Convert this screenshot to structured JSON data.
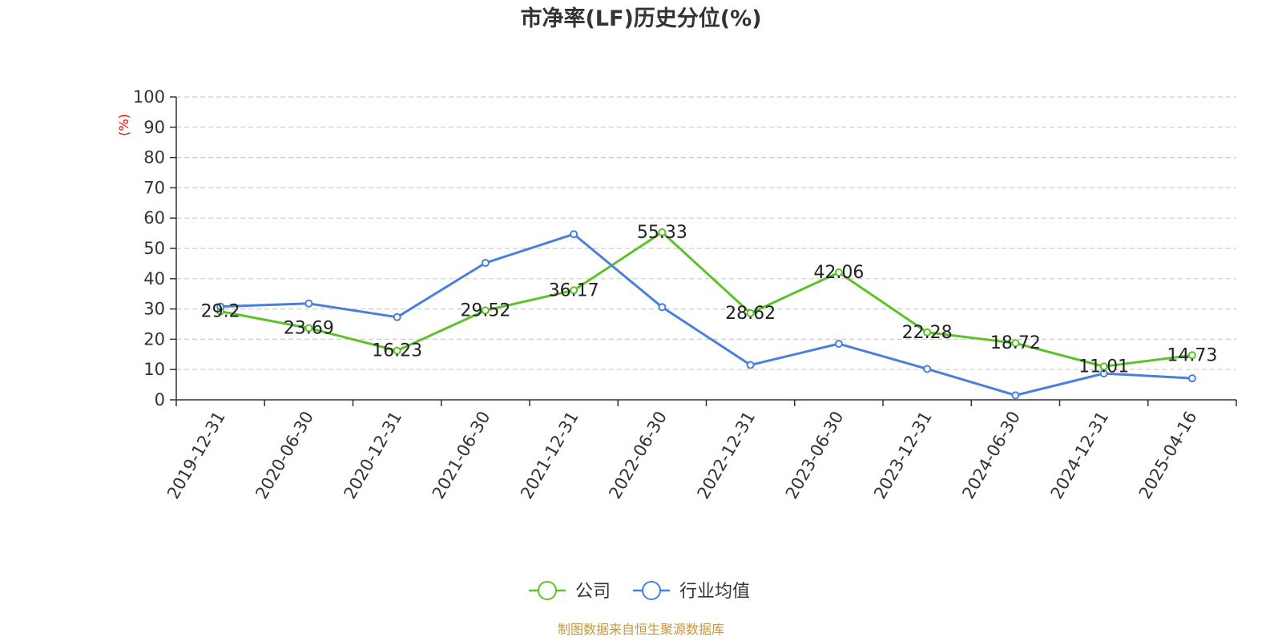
{
  "chart_data": {
    "type": "line",
    "title": "市净率(LF)历史分位(%)",
    "ylabel": "(%)",
    "ylim": [
      0,
      100
    ],
    "yticks": [
      0,
      10,
      20,
      30,
      40,
      50,
      60,
      70,
      80,
      90,
      100
    ],
    "categories": [
      "2019-12-31",
      "2020-06-30",
      "2020-12-31",
      "2021-06-30",
      "2021-12-31",
      "2022-06-30",
      "2022-12-31",
      "2023-06-30",
      "2023-12-31",
      "2024-06-30",
      "2024-12-31",
      "2025-04-16"
    ],
    "grid": true,
    "legend_position": "bottom",
    "series": [
      {
        "name": "公司",
        "color": "#5cc22a",
        "values": [
          29.2,
          23.69,
          16.23,
          29.52,
          36.17,
          55.33,
          28.62,
          42.06,
          22.28,
          18.72,
          11.01,
          14.73
        ],
        "labels": [
          "29.2",
          "23.69",
          "16.23",
          "29.52",
          "36.17",
          "55.33",
          "28.62",
          "42.06",
          "22.28",
          "18.72",
          "11.01",
          "14.73"
        ]
      },
      {
        "name": "行业均值",
        "color": "#4a7fdc",
        "values": [
          30.8,
          31.8,
          27.3,
          45.2,
          54.7,
          30.6,
          11.5,
          18.5,
          10.2,
          1.5,
          8.7,
          7.1
        ]
      }
    ],
    "source": "制图数据来自恒生聚源数据库"
  }
}
